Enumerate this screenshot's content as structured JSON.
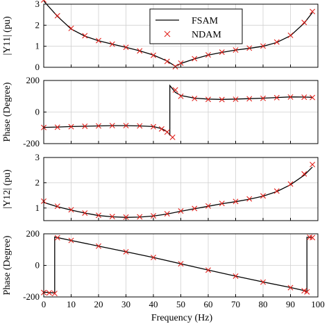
{
  "chart_data": {
    "type": "line",
    "x_range": [
      0,
      100
    ],
    "x_ticks": [
      "0",
      "10",
      "20",
      "30",
      "40",
      "50",
      "60",
      "70",
      "80",
      "90",
      "100"
    ],
    "xlabel": "Frequency (Hz)",
    "grid": true,
    "legend": {
      "entries": [
        "FSAM",
        "NDAM"
      ],
      "placement": "top-right of first panel"
    },
    "colors": {
      "fsam": "#000000",
      "ndam": "#e0201b"
    },
    "panels": [
      {
        "ylabel": "|Y11| (pu)",
        "ylim": [
          0,
          3
        ],
        "y_ticks": [
          "0",
          "1",
          "2",
          "3"
        ],
        "series": [
          {
            "name": "FSAM",
            "style": "line",
            "x": [
              0,
              5,
              10,
              15,
              20,
              25,
              30,
              35,
              40,
              45,
              48,
              50,
              55,
              60,
              65,
              70,
              75,
              80,
              85,
              90,
              95,
              98
            ],
            "y": [
              3.15,
              2.42,
              1.82,
              1.48,
              1.26,
              1.1,
              0.95,
              0.78,
              0.58,
              0.3,
              0.05,
              0.18,
              0.4,
              0.58,
              0.71,
              0.82,
              0.9,
              1.0,
              1.18,
              1.5,
              2.1,
              2.6
            ]
          },
          {
            "name": "NDAM",
            "style": "x-marker",
            "x": [
              0,
              5,
              10,
              15,
              20,
              25,
              30,
              35,
              40,
              45,
              48,
              50,
              55,
              60,
              65,
              70,
              75,
              80,
              85,
              90,
              95,
              98
            ],
            "y": [
              3.2,
              2.45,
              1.85,
              1.5,
              1.27,
              1.1,
              0.95,
              0.78,
              0.57,
              0.28,
              0.03,
              0.2,
              0.41,
              0.59,
              0.72,
              0.82,
              0.91,
              1.01,
              1.2,
              1.52,
              2.13,
              2.65
            ]
          }
        ]
      },
      {
        "ylabel": "Phase (Degree)",
        "ylim": [
          -200,
          200
        ],
        "y_ticks": [
          "-200",
          "0",
          "200"
        ],
        "series": [
          {
            "name": "FSAM",
            "style": "line",
            "x": [
              0,
              5,
              10,
              15,
              20,
              25,
              30,
              35,
              40,
              43,
              45,
              46,
              46.01,
              48,
              50,
              55,
              60,
              65,
              70,
              75,
              80,
              85,
              90,
              95,
              98
            ],
            "y": [
              -97,
              -95,
              -92,
              -90,
              -88,
              -86,
              -86,
              -88,
              -92,
              -105,
              -125,
              -145,
              168,
              125,
              105,
              88,
              82,
              80,
              82,
              85,
              88,
              92,
              96,
              95,
              93
            ]
          },
          {
            "name": "NDAM",
            "style": "x-marker",
            "x": [
              0,
              5,
              10,
              15,
              20,
              25,
              30,
              35,
              40,
              43,
              45,
              47,
              48,
              50,
              55,
              60,
              65,
              70,
              75,
              80,
              85,
              90,
              95,
              98
            ],
            "y": [
              -98,
              -96,
              -93,
              -90,
              -88,
              -86,
              -86,
              -88,
              -93,
              -107,
              -127,
              -160,
              140,
              100,
              86,
              80,
              79,
              81,
              84,
              87,
              91,
              95,
              94,
              92
            ]
          }
        ]
      },
      {
        "ylabel": "|Y12| (pu)",
        "ylim": [
          0.5,
          3
        ],
        "y_ticks": [
          "1",
          "2",
          "3"
        ],
        "series": [
          {
            "name": "FSAM",
            "style": "line",
            "x": [
              0,
              5,
              10,
              15,
              20,
              25,
              30,
              35,
              40,
              45,
              50,
              55,
              60,
              65,
              70,
              75,
              80,
              85,
              90,
              95,
              98
            ],
            "y": [
              1.22,
              1.05,
              0.92,
              0.8,
              0.7,
              0.65,
              0.63,
              0.64,
              0.68,
              0.76,
              0.87,
              0.97,
              1.07,
              1.17,
              1.25,
              1.35,
              1.47,
              1.65,
              1.92,
              2.3,
              2.62
            ]
          },
          {
            "name": "NDAM",
            "style": "x-marker",
            "x": [
              0,
              5,
              10,
              15,
              20,
              25,
              30,
              35,
              40,
              45,
              50,
              55,
              60,
              65,
              70,
              75,
              80,
              85,
              90,
              95,
              98
            ],
            "y": [
              1.27,
              1.07,
              0.93,
              0.8,
              0.71,
              0.66,
              0.64,
              0.65,
              0.69,
              0.77,
              0.88,
              0.98,
              1.08,
              1.18,
              1.26,
              1.36,
              1.48,
              1.67,
              1.95,
              2.35,
              2.72
            ]
          }
        ]
      },
      {
        "ylabel": "Phase (Degree)",
        "ylim": [
          -200,
          200
        ],
        "y_ticks": [
          "-200",
          "0",
          "200"
        ],
        "series": [
          {
            "name": "FSAM",
            "style": "line",
            "x": [
              0,
              2,
              4,
              4.01,
              10,
              20,
              30,
              40,
              50,
              60,
              70,
              80,
              90,
              95,
              96,
              96.01,
              98
            ],
            "y": [
              -170,
              -172,
              -175,
              180,
              158,
              122,
              86,
              50,
              10,
              -30,
              -68,
              -105,
              -140,
              -160,
              -167,
              178,
              178
            ]
          },
          {
            "name": "NDAM",
            "style": "x-marker",
            "x": [
              0,
              2,
              4,
              5,
              10,
              20,
              30,
              40,
              50,
              60,
              70,
              80,
              90,
              95,
              96,
              97,
              98
            ],
            "y": [
              -172,
              -174,
              -178,
              175,
              158,
              122,
              86,
              50,
              10,
              -30,
              -68,
              -106,
              -141,
              -161,
              -168,
              178,
              176
            ]
          }
        ]
      }
    ]
  }
}
